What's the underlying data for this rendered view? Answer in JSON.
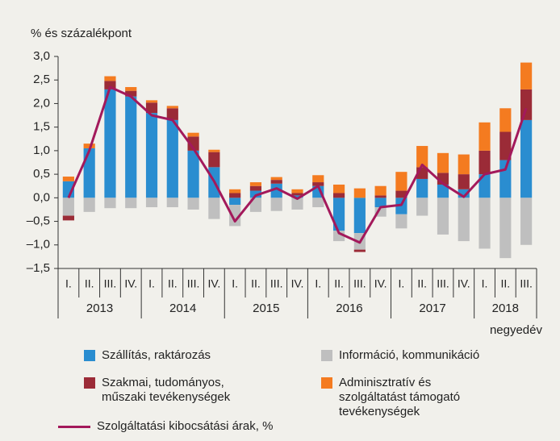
{
  "chart_data": {
    "type": "stacked-bar-line",
    "ylabel": "% és százalékpont",
    "xlabel": "negyedév",
    "categories": [
      "I.",
      "II.",
      "III.",
      "IV.",
      "I.",
      "II.",
      "III.",
      "IV.",
      "I.",
      "II.",
      "III.",
      "IV.",
      "I.",
      "II.",
      "III.",
      "IV.",
      "I.",
      "II.",
      "III.",
      "IV.",
      "I.",
      "II.",
      "III."
    ],
    "years": [
      {
        "label": "2013",
        "quarters": 4
      },
      {
        "label": "2014",
        "quarters": 4
      },
      {
        "label": "2015",
        "quarters": 4
      },
      {
        "label": "2016",
        "quarters": 4
      },
      {
        "label": "2017",
        "quarters": 4
      },
      {
        "label": "2018",
        "quarters": 3
      }
    ],
    "series": [
      {
        "name": "Szállítás, raktározás",
        "color": "#2a8dd0",
        "kind": "bar",
        "values": [
          0.35,
          1.05,
          2.3,
          2.15,
          1.8,
          1.65,
          1.0,
          0.65,
          -0.15,
          0.15,
          0.3,
          0.05,
          0.25,
          -0.7,
          -0.75,
          -0.2,
          -0.35,
          0.4,
          0.28,
          0.18,
          0.5,
          0.8,
          1.65
        ]
      },
      {
        "name": "Információ, kommunikáció",
        "color": "#bfbfbf",
        "kind": "bar",
        "values": [
          -0.38,
          -0.3,
          -0.22,
          -0.22,
          -0.2,
          -0.2,
          -0.25,
          -0.45,
          -0.45,
          -0.3,
          -0.28,
          -0.25,
          -0.2,
          -0.22,
          -0.35,
          -0.2,
          -0.3,
          -0.38,
          -0.78,
          -0.92,
          -1.08,
          -1.28,
          -1.0
        ]
      },
      {
        "name": "Szakmai, tudományos, műszaki tevékenységek",
        "color": "#9b2b37",
        "kind": "bar",
        "values": [
          -0.1,
          0.0,
          0.18,
          0.12,
          0.22,
          0.25,
          0.3,
          0.32,
          0.1,
          0.1,
          0.08,
          0.05,
          0.08,
          0.1,
          -0.05,
          0.05,
          0.15,
          0.25,
          0.25,
          0.32,
          0.5,
          0.6,
          0.65
        ]
      },
      {
        "name": "Adminisztratív és szolgáltatást támogató tevékenységek",
        "color": "#f47b20",
        "kind": "bar",
        "values": [
          0.1,
          0.1,
          0.1,
          0.08,
          0.05,
          0.05,
          0.08,
          0.05,
          0.08,
          0.08,
          0.06,
          0.08,
          0.15,
          0.18,
          0.2,
          0.2,
          0.4,
          0.45,
          0.42,
          0.42,
          0.6,
          0.5,
          0.57
        ]
      },
      {
        "name": "Szolgáltatási kibocsátási árak, %",
        "color": "#a3195b",
        "kind": "line",
        "values": [
          0.0,
          1.0,
          2.35,
          2.15,
          1.75,
          1.65,
          1.05,
          0.35,
          -0.5,
          0.05,
          0.2,
          -0.02,
          0.25,
          -0.75,
          -0.95,
          -0.2,
          -0.15,
          0.7,
          0.3,
          0.02,
          0.5,
          0.6,
          1.9
        ]
      }
    ],
    "ylim": [
      -1.5,
      3.0
    ],
    "yticks": [
      {
        "value": -1.5,
        "label": "–1,5"
      },
      {
        "value": -1.0,
        "label": "–1,0"
      },
      {
        "value": -0.5,
        "label": "–0,5"
      },
      {
        "value": 0.0,
        "label": "0,0"
      },
      {
        "value": 0.5,
        "label": "0,5"
      },
      {
        "value": 1.0,
        "label": "1,0"
      },
      {
        "value": 1.5,
        "label": "1,5"
      },
      {
        "value": 2.0,
        "label": "2,0"
      },
      {
        "value": 2.5,
        "label": "2,5"
      },
      {
        "value": 3.0,
        "label": "3,0"
      }
    ],
    "grid": false
  }
}
